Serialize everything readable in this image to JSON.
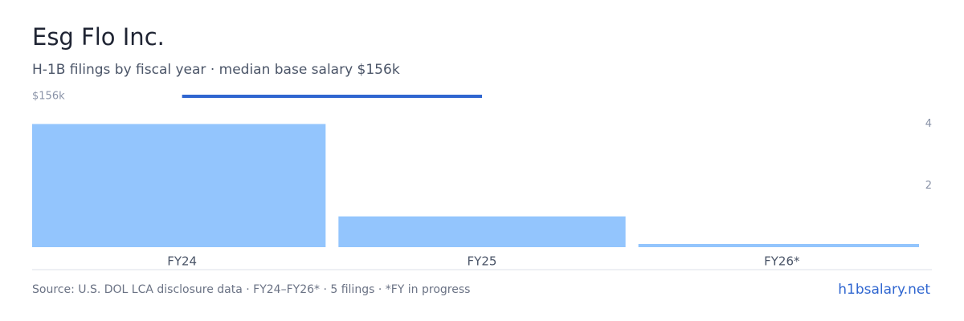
{
  "chart_data": {
    "type": "bar",
    "title": "Esg Flo Inc.",
    "subtitle": "H-1B filings by fiscal year · median base salary $156k",
    "categories": [
      "FY24",
      "FY25",
      "FY26*"
    ],
    "series": [
      {
        "values": [
          4,
          1,
          0
        ],
        "color": "#93c5fd"
      },
      {
        "type": "line",
        "axis": "y2",
        "values": [
          156000,
          156000,
          null
        ],
        "color": "#2f66d0"
      }
    ],
    "ylim": [
      0,
      4.9
    ],
    "yticks": [
      2,
      4
    ],
    "y2lim": [
      0,
      156000
    ],
    "y2ticks": [
      {
        "value": 156000,
        "label": "$156k"
      }
    ],
    "source": "Source: U.S. DOL LCA disclosure data · FY24–FY26* · 5 filings · *FY in progress",
    "brand": "h1bsalary.net"
  }
}
